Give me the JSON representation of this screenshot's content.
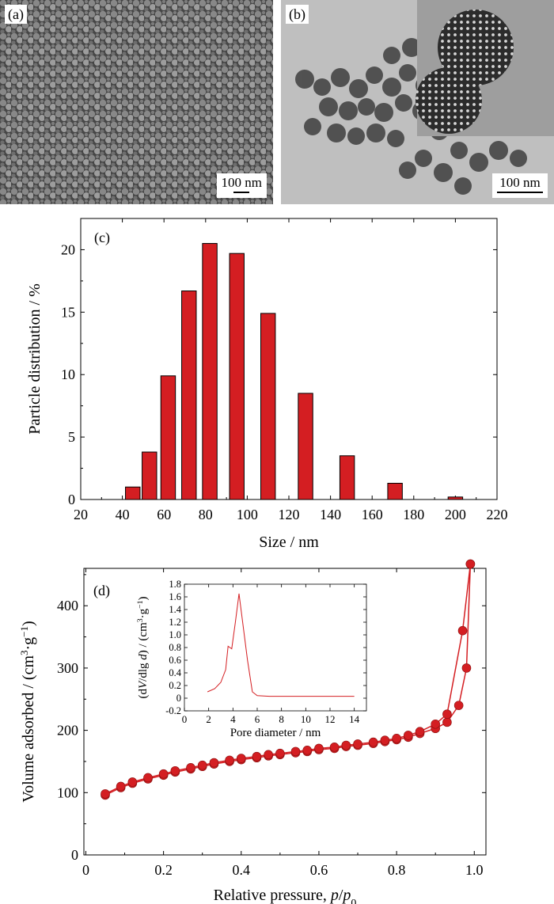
{
  "panels": {
    "a": {
      "tag": "(a)",
      "scale_label": "100 nm"
    },
    "b": {
      "tag": "(b)",
      "scale_label": "100 nm"
    }
  },
  "colors": {
    "bar_fill": "#d41e22",
    "line": "#d41e22",
    "axis": "#000000"
  },
  "chart_data": [
    {
      "panel": "(c)",
      "type": "bar",
      "xlabel": "Size / nm",
      "ylabel": "Particle distribution / %",
      "xlim": [
        20,
        220
      ],
      "ylim": [
        0,
        22.5
      ],
      "xticks": [
        20,
        40,
        60,
        80,
        100,
        120,
        140,
        160,
        180,
        200,
        220
      ],
      "yticks": [
        0,
        5,
        10,
        15,
        20
      ],
      "bin_width": 7,
      "x": [
        45,
        53,
        62,
        72,
        82,
        95,
        110,
        128,
        148,
        171,
        200
      ],
      "values": [
        1.0,
        3.8,
        9.9,
        16.7,
        20.5,
        19.7,
        14.9,
        8.5,
        3.5,
        1.3,
        0.2
      ]
    },
    {
      "panel": "(d)",
      "type": "line",
      "xlabel": "Relative pressure, p/p0",
      "ylabel": "Volume adsorbed / (cm3·g-1)",
      "xlim": [
        -0.005,
        1.03
      ],
      "ylim": [
        0,
        460
      ],
      "xticks": [
        0,
        0.2,
        0.4,
        0.6,
        0.8,
        1.0
      ],
      "xtick_labels": [
        "0",
        "0.2",
        "0.4",
        "0.6",
        "0.8",
        "1.0"
      ],
      "yticks": [
        0,
        100,
        200,
        300,
        400
      ],
      "markers": "filled circle",
      "series": [
        {
          "x": [
            0.05,
            0.09,
            0.12,
            0.16,
            0.2,
            0.23,
            0.27,
            0.3,
            0.33,
            0.37,
            0.4,
            0.44,
            0.47,
            0.5,
            0.54,
            0.57,
            0.6,
            0.64,
            0.67,
            0.7,
            0.74,
            0.77,
            0.8,
            0.83,
            0.86,
            0.9,
            0.93,
            0.96,
            0.98,
            0.99
          ],
          "values": [
            96,
            108,
            115,
            122,
            128,
            133,
            138,
            142,
            146,
            150,
            153,
            156,
            159,
            161,
            164,
            166,
            169,
            171,
            174,
            176,
            179,
            182,
            185,
            189,
            195,
            203,
            213,
            240,
            300,
            467
          ]
        },
        {
          "x": [
            0.05,
            0.09,
            0.12,
            0.16,
            0.2,
            0.23,
            0.27,
            0.3,
            0.33,
            0.37,
            0.4,
            0.44,
            0.47,
            0.5,
            0.54,
            0.57,
            0.6,
            0.64,
            0.67,
            0.7,
            0.74,
            0.77,
            0.8,
            0.83,
            0.86,
            0.9,
            0.93,
            0.97,
            0.99
          ],
          "values": [
            98,
            110,
            117,
            124,
            130,
            135,
            140,
            144,
            148,
            152,
            155,
            158,
            161,
            163,
            166,
            168,
            171,
            173,
            176,
            178,
            181,
            184,
            187,
            192,
            198,
            210,
            226,
            360,
            467
          ]
        }
      ],
      "inset": {
        "type": "line",
        "xlabel": "Pore diameter / nm",
        "ylabel": "(dV/dlg d) / (cm3·g-1)",
        "xlim": [
          0,
          15
        ],
        "ylim": [
          -0.2,
          1.8
        ],
        "xticks": [
          0,
          2,
          4,
          6,
          8,
          10,
          12,
          14
        ],
        "yticks": [
          -0.2,
          0,
          0.2,
          0.4,
          0.6,
          0.8,
          1.0,
          1.2,
          1.4,
          1.6,
          1.8
        ],
        "ytick_labels": [
          "-0.2",
          "0",
          "0.2",
          "0.4",
          "0.6",
          "0.8",
          "1.0",
          "1.2",
          "1.4",
          "1.6",
          "1.8"
        ],
        "x": [
          1.9,
          2.5,
          3.0,
          3.4,
          3.6,
          3.9,
          4.2,
          4.5,
          4.8,
          5.2,
          5.6,
          6.0,
          7.0,
          10.0,
          14.0
        ],
        "values": [
          0.1,
          0.15,
          0.25,
          0.45,
          0.82,
          0.78,
          1.2,
          1.65,
          1.2,
          0.6,
          0.1,
          0.04,
          0.03,
          0.03,
          0.03
        ]
      }
    }
  ]
}
